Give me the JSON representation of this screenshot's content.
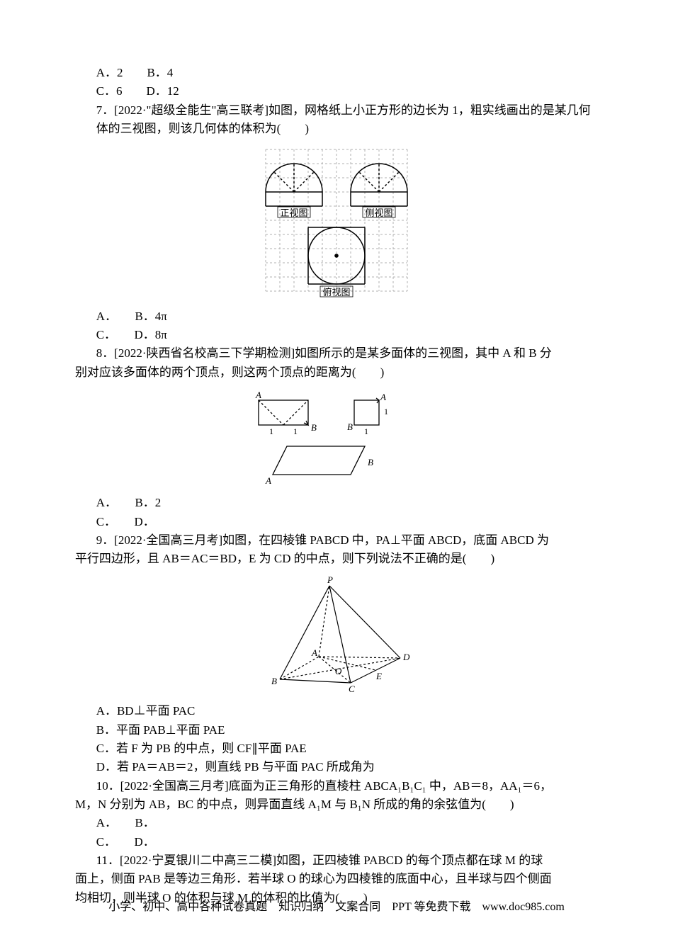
{
  "q_pre": {
    "lineA": "A．2　　B．4",
    "lineC": "C．6　　D．12"
  },
  "q7": {
    "prompt": "7．[2022·\"超级全能生\"高三联考]如图，网格纸上小正方形的边长为 1，粗实线画出的是某几何体的三视图，则该几何体的体积为(　　)",
    "optA": "A．　　B．4π",
    "optC": "C．　　D．8π",
    "fig": {
      "grid_color": "#b0b0b0",
      "dash": "3,3",
      "line_color": "#000000",
      "text_color": "#000000",
      "cols": 10,
      "rows": 10,
      "cell": 20,
      "front_label": "正视图",
      "side_label": "侧视图",
      "top_label": "俯视图"
    }
  },
  "q8": {
    "prompt_a": "8．[2022·陕西省名校高三下学期检测]如图所示的是某多面体的三视图，其中 A 和 B 分",
    "prompt_b": "别对应该多面体的两个顶点，则这两个顶点的距离为(　　)",
    "optA": "A．　　B．2",
    "optC": "C．　　D．",
    "fig": {
      "line_color": "#000000",
      "dash": "3,3",
      "labelA": "A",
      "labelB": "B",
      "dim1": "1"
    }
  },
  "q9": {
    "prompt_a": "9．[2022·全国高三月考]如图，在四棱锥 P­ABCD 中，PA⊥平面 ABCD，底面 ABCD 为",
    "prompt_b": "平行四边形，且 AB＝AC＝BD，E 为 CD 的中点，则下列说法不正确的是(　　)",
    "optA": "A．BD⊥平面 PAC",
    "optB": "B．平面 PAB⊥平面 PAE",
    "optC": "C．若 F 为 PB 的中点，则 CF∥平面 PAE",
    "optD": "D．若 PA＝AB＝2，则直线 PB 与平面 PAC 所成角为",
    "fig": {
      "line_color": "#000000",
      "dash": "3,3",
      "P": "P",
      "A": "A",
      "B": "B",
      "C": "C",
      "D": "D",
      "E": "E",
      "O": "O"
    }
  },
  "q10": {
    "line1": "10．[2022·全国高三月考]底面为正三角形的直棱柱 ABC­A₁B₁C₁ 中，AB＝8，AA₁＝6，",
    "line2": "M，N 分别为 AB，BC 的中点，则异面直线 A₁M 与 B₁N 所成的角的余弦值为(　　)",
    "optA": "A．　　B．",
    "optC": "C．　　D．"
  },
  "q11": {
    "line1": "11．[2022·宁夏银川二中高三二模]如图，正四棱锥 P­ABCD 的每个顶点都在球 M 的球",
    "line2": "面上，侧面 PAB 是等边三角形．若半球 O 的球心为四棱锥的底面中心，且半球与四个侧面",
    "line3": "均相切，则半球 O 的体积与球 M 的体积的比值为(　　)"
  },
  "footer": "小学、初中、高中各种试卷真题　知识归纳　文案合同　PPT 等免费下载　www.doc985.com"
}
